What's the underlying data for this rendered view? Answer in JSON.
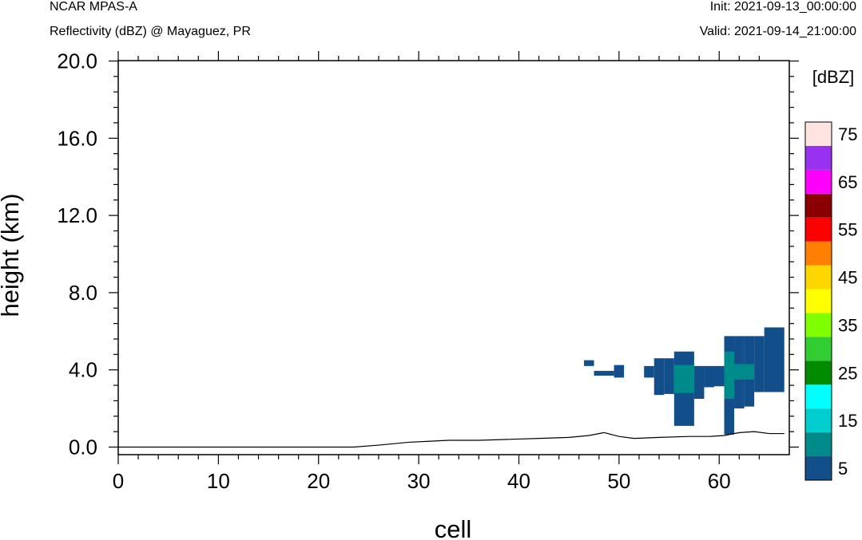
{
  "header": {
    "model": "NCAR MPAS-A",
    "subtitle": "Reflectivity (dBZ) @ Mayaguez, PR",
    "init": "Init: 2021-09-13_00:00:00",
    "valid": "Valid: 2021-09-14_21:00:00"
  },
  "chart_data": {
    "type": "heatmap",
    "xlabel": "cell",
    "ylabel": "height (km)",
    "xlim": [
      0,
      67
    ],
    "ylim": [
      -0.4,
      20.0
    ],
    "x_ticks": [
      0,
      10,
      20,
      30,
      40,
      50,
      60
    ],
    "x_tick_labels": [
      "0",
      "10",
      "20",
      "30",
      "40",
      "50",
      "60"
    ],
    "y_ticks": [
      0,
      4,
      8,
      12,
      16,
      20
    ],
    "y_tick_labels": [
      "0.0",
      "4.0",
      "8.0",
      "12.0",
      "16.0",
      "20.0"
    ],
    "colorbar": {
      "title": "[dBZ]",
      "colors": [
        "#124e8a",
        "#008b8b",
        "#00cdcd",
        "#00ffff",
        "#008b00",
        "#32cd32",
        "#7fff00",
        "#ffff00",
        "#ffd700",
        "#ff7f00",
        "#ff0000",
        "#8b0000",
        "#ff00ff",
        "#9932f0",
        "#ffe4e1"
      ],
      "labels": [
        "5",
        "15",
        "25",
        "35",
        "45",
        "55",
        "65",
        "75"
      ]
    },
    "cells": [
      {
        "x0": 46.5,
        "x1": 47.5,
        "y0": 4.2,
        "y1": 4.5,
        "level": 0
      },
      {
        "x0": 47.5,
        "x1": 49.5,
        "y0": 3.7,
        "y1": 3.95,
        "level": 0
      },
      {
        "x0": 49.5,
        "x1": 50.5,
        "y0": 3.6,
        "y1": 4.25,
        "level": 0
      },
      {
        "x0": 52.5,
        "x1": 53.5,
        "y0": 3.6,
        "y1": 4.2,
        "level": 0
      },
      {
        "x0": 53.5,
        "x1": 54.5,
        "y0": 2.7,
        "y1": 4.6,
        "level": 0
      },
      {
        "x0": 54.5,
        "x1": 55.5,
        "y0": 2.75,
        "y1": 4.6,
        "level": 0
      },
      {
        "x0": 55.5,
        "x1": 57.5,
        "y0": 1.1,
        "y1": 4.95,
        "level": 0
      },
      {
        "x0": 57.5,
        "x1": 58.5,
        "y0": 2.5,
        "y1": 4.2,
        "level": 0
      },
      {
        "x0": 58.5,
        "x1": 59.5,
        "y0": 3.1,
        "y1": 4.2,
        "level": 0
      },
      {
        "x0": 59.5,
        "x1": 60.5,
        "y0": 3.15,
        "y1": 4.2,
        "level": 0
      },
      {
        "x0": 60.5,
        "x1": 61.5,
        "y0": 0.65,
        "y1": 5.75,
        "level": 0
      },
      {
        "x0": 61.5,
        "x1": 62.5,
        "y0": 2.0,
        "y1": 5.75,
        "level": 0
      },
      {
        "x0": 62.5,
        "x1": 63.5,
        "y0": 2.1,
        "y1": 5.75,
        "level": 0
      },
      {
        "x0": 63.5,
        "x1": 64.5,
        "y0": 2.85,
        "y1": 5.75,
        "level": 0
      },
      {
        "x0": 64.5,
        "x1": 66.5,
        "y0": 2.85,
        "y1": 6.2,
        "level": 0
      },
      {
        "x0": 55.5,
        "x1": 57.5,
        "y0": 2.8,
        "y1": 4.25,
        "level": 1
      },
      {
        "x0": 60.5,
        "x1": 61.5,
        "y0": 2.5,
        "y1": 4.95,
        "level": 1
      },
      {
        "x0": 61.5,
        "x1": 63.5,
        "y0": 3.5,
        "y1": 4.3,
        "level": 1
      }
    ],
    "terrain": {
      "x": [
        0,
        23.5,
        26,
        29,
        31,
        33,
        36,
        39,
        42,
        45,
        47,
        48.5,
        50,
        51.5,
        54,
        57,
        59,
        60.5,
        62,
        63.5,
        65,
        66.5
      ],
      "y": [
        0.0,
        0.0,
        0.1,
        0.25,
        0.3,
        0.35,
        0.35,
        0.4,
        0.45,
        0.5,
        0.6,
        0.75,
        0.55,
        0.45,
        0.5,
        0.55,
        0.55,
        0.6,
        0.75,
        0.8,
        0.7,
        0.7
      ]
    }
  }
}
